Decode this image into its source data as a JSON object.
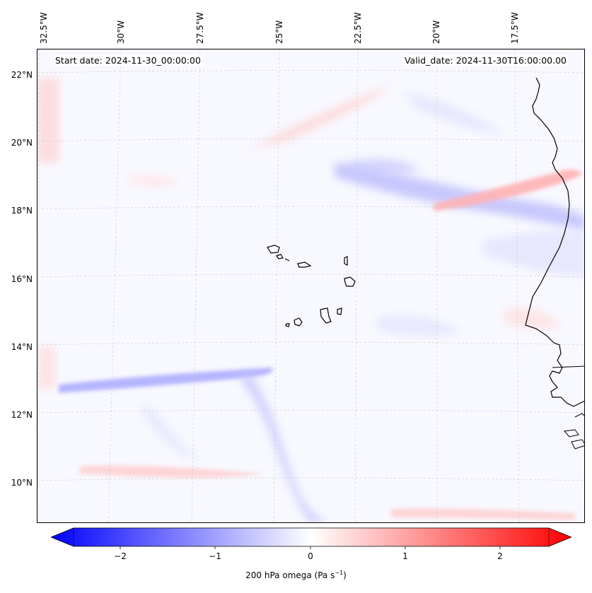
{
  "header": {
    "start_date": "Start date: 2024-11-30_00:00:00",
    "valid_date": "Valid_date: 2024-11-30T16:00:00.00"
  },
  "axes": {
    "longitude_labels": [
      "32.5°W",
      "30°W",
      "27.5°W",
      "25°W",
      "22.5°W",
      "20°W",
      "17.5°W"
    ],
    "latitude_labels": [
      "22°N",
      "20°N",
      "18°N",
      "16°N",
      "14°N",
      "12°N",
      "10°N"
    ]
  },
  "colorbar": {
    "label_main": "200 hPa omega (Pa s",
    "label_exp": "−1",
    "label_end": ")",
    "ticks": [
      "−2",
      "−1",
      "0",
      "1",
      "2"
    ],
    "tick_values": [
      -2,
      -1,
      0,
      1,
      2
    ],
    "range": [
      -2.6,
      2.6
    ],
    "negative_color": "#0000ff",
    "zero_color": "#ffffff",
    "positive_color": "#ff0000"
  },
  "colors": {
    "coastline": "#000000",
    "gridline": "#c8c8c8"
  }
}
